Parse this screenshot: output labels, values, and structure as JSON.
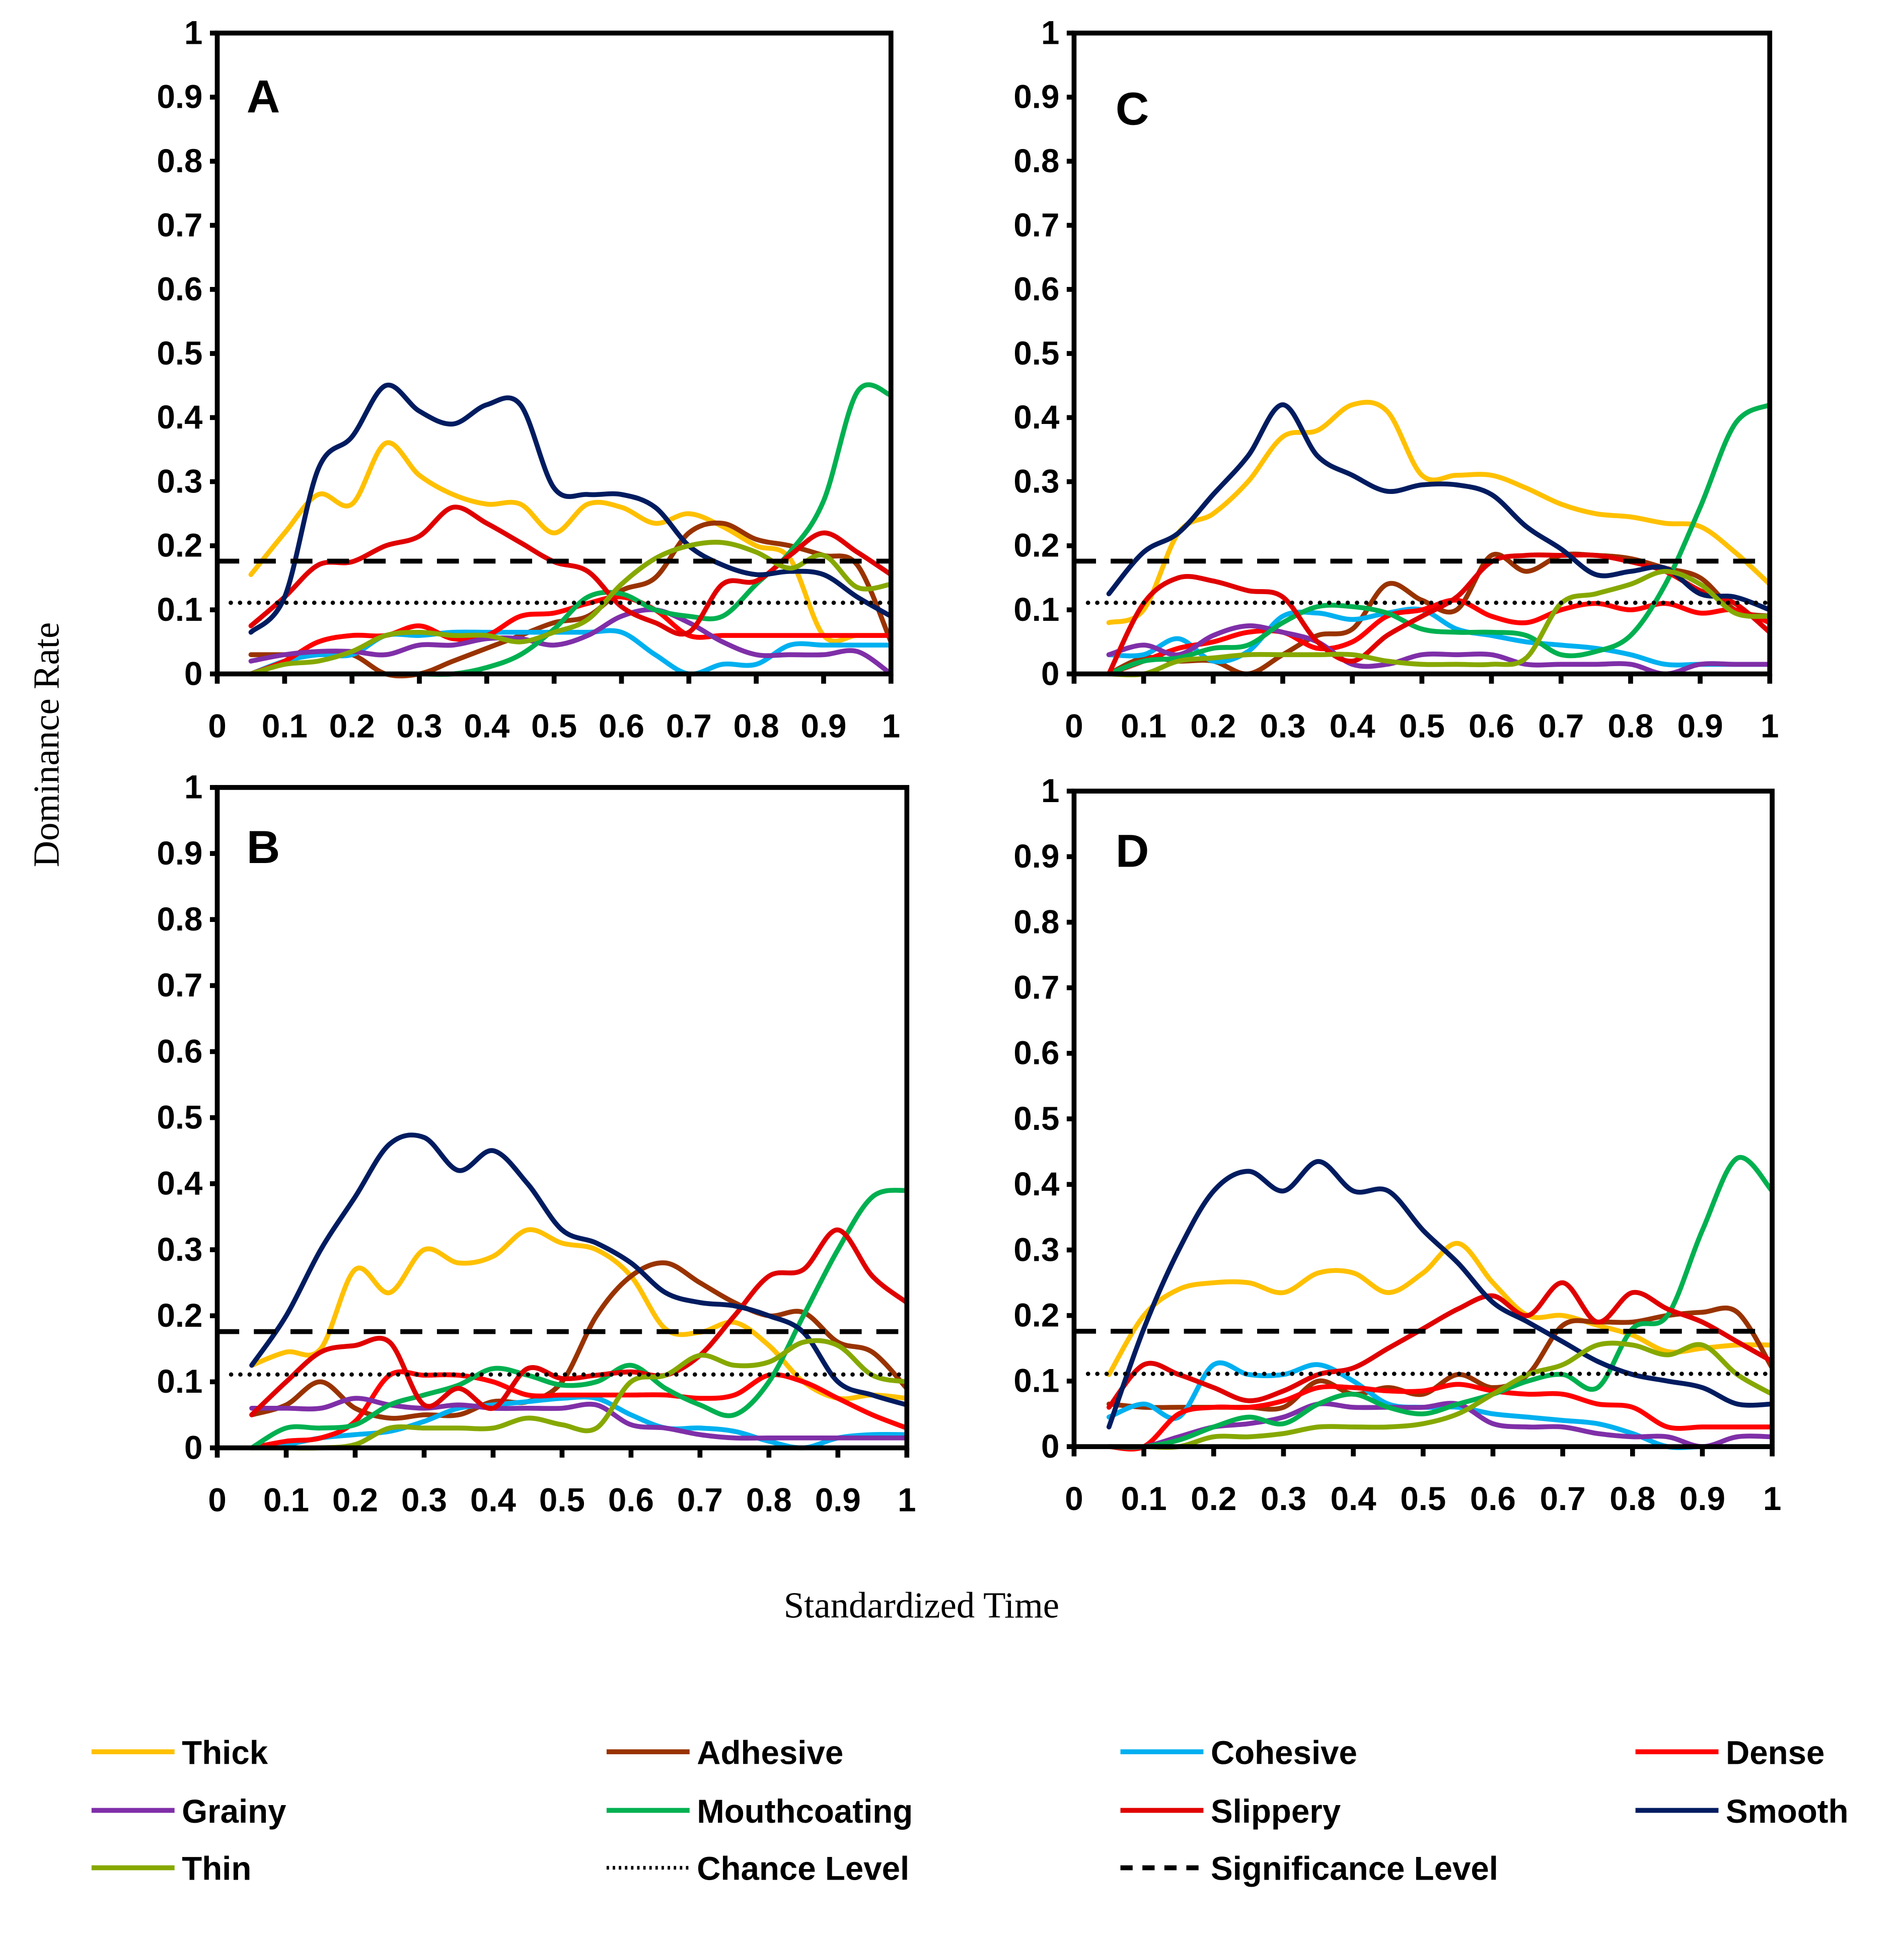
{
  "chart_data": {
    "type": "line",
    "xlabel": "Standardized Time",
    "ylabel": "Dominance Rate",
    "xlim": [
      0,
      1
    ],
    "ylim": [
      0,
      1
    ],
    "x_ticks": [
      "0",
      "0.1",
      "0.2",
      "0.3",
      "0.4",
      "0.5",
      "0.6",
      "0.7",
      "0.8",
      "0.9",
      "1"
    ],
    "y_ticks": [
      "0",
      "0.1",
      "0.2",
      "0.3",
      "0.4",
      "0.5",
      "0.6",
      "0.7",
      "0.8",
      "0.9",
      "1"
    ],
    "grid": false,
    "legend_position": "bottom",
    "chance_level": 0.111,
    "significance_level": 0.176,
    "x": [
      0.05,
      0.1,
      0.15,
      0.2,
      0.25,
      0.3,
      0.35,
      0.4,
      0.45,
      0.5,
      0.55,
      0.6,
      0.65,
      0.7,
      0.75,
      0.8,
      0.85,
      0.9,
      0.95,
      1.0
    ],
    "legend": [
      {
        "name": "Thick",
        "color": "#FFC000",
        "style": "solid"
      },
      {
        "name": "Adhesive",
        "color": "#993300",
        "style": "solid"
      },
      {
        "name": "Cohesive",
        "color": "#00B0F0",
        "style": "solid"
      },
      {
        "name": "Dense",
        "color": "#FF0000",
        "style": "solid"
      },
      {
        "name": "Grainy",
        "color": "#7F2FA8",
        "style": "solid"
      },
      {
        "name": "Mouthcoating",
        "color": "#00B050",
        "style": "solid"
      },
      {
        "name": "Slippery",
        "color": "#E00000",
        "style": "solid"
      },
      {
        "name": "Smooth",
        "color": "#001C60",
        "style": "solid"
      },
      {
        "name": "Thin",
        "color": "#86A800",
        "style": "solid"
      },
      {
        "name": "Chance Level",
        "color": "#000000",
        "style": "dotted"
      },
      {
        "name": "Significance Level",
        "color": "#000000",
        "style": "dashed"
      }
    ],
    "panels": [
      {
        "label": "A",
        "series": {
          "Thick": [
            0.155,
            0.22,
            0.28,
            0.265,
            0.36,
            0.31,
            0.28,
            0.265,
            0.265,
            0.22,
            0.265,
            0.26,
            0.235,
            0.25,
            0.23,
            0.2,
            0.18,
            0.06,
            0.06,
            0.06
          ],
          "Adhesive": [
            0.03,
            0.03,
            0.03,
            0.03,
            0.0,
            0.0,
            0.02,
            0.04,
            0.06,
            0.08,
            0.09,
            0.13,
            0.15,
            0.22,
            0.235,
            0.21,
            0.2,
            0.185,
            0.17,
            0.05
          ],
          "Cohesive": [
            0.0,
            0.02,
            0.03,
            0.03,
            0.06,
            0.06,
            0.065,
            0.065,
            0.065,
            0.065,
            0.065,
            0.065,
            0.03,
            0.0,
            0.015,
            0.015,
            0.045,
            0.045,
            0.045,
            0.045
          ],
          "Dense": [
            0.0,
            0.02,
            0.05,
            0.06,
            0.06,
            0.075,
            0.055,
            0.06,
            0.09,
            0.095,
            0.11,
            0.12,
            0.1,
            0.06,
            0.06,
            0.06,
            0.06,
            0.06,
            0.06,
            0.06
          ],
          "Grainy": [
            0.02,
            0.03,
            0.035,
            0.035,
            0.03,
            0.045,
            0.045,
            0.055,
            0.055,
            0.045,
            0.06,
            0.09,
            0.1,
            0.08,
            0.05,
            0.03,
            0.03,
            0.03,
            0.035,
            0.0
          ],
          "Mouthcoating": [
            0,
            0,
            0,
            0,
            0,
            0,
            0,
            0.01,
            0.03,
            0.07,
            0.12,
            0.125,
            0.1,
            0.09,
            0.09,
            0.14,
            0.19,
            0.27,
            0.44,
            0.435
          ],
          "Slippery": [
            0.075,
            0.12,
            0.17,
            0.175,
            0.2,
            0.215,
            0.26,
            0.235,
            0.205,
            0.175,
            0.16,
            0.105,
            0.08,
            0.065,
            0.14,
            0.145,
            0.185,
            0.22,
            0.19,
            0.155
          ],
          "Smooth": [
            0.065,
            0.12,
            0.32,
            0.37,
            0.45,
            0.41,
            0.39,
            0.42,
            0.42,
            0.29,
            0.28,
            0.28,
            0.26,
            0.2,
            0.17,
            0.155,
            0.16,
            0.155,
            0.12,
            0.09
          ],
          "Thin": [
            0,
            0.015,
            0.02,
            0.035,
            0.06,
            0.065,
            0.06,
            0.06,
            0.05,
            0.065,
            0.085,
            0.14,
            0.18,
            0.2,
            0.205,
            0.19,
            0.165,
            0.185,
            0.135,
            0.14
          ]
        }
      },
      {
        "label": "B",
        "series": {
          "Thick": [
            0.125,
            0.145,
            0.15,
            0.27,
            0.235,
            0.3,
            0.28,
            0.29,
            0.33,
            0.31,
            0.3,
            0.26,
            0.18,
            0.175,
            0.19,
            0.155,
            0.1,
            0.075,
            0.08,
            0.075
          ],
          "Adhesive": [
            0.05,
            0.065,
            0.1,
            0.06,
            0.045,
            0.05,
            0.05,
            0.07,
            0.07,
            0.1,
            0.2,
            0.26,
            0.28,
            0.25,
            0.22,
            0.2,
            0.205,
            0.16,
            0.145,
            0.09
          ],
          "Cohesive": [
            0.0,
            0.005,
            0.015,
            0.02,
            0.025,
            0.04,
            0.06,
            0.065,
            0.07,
            0.075,
            0.075,
            0.05,
            0.03,
            0.03,
            0.025,
            0.01,
            0.0,
            0.015,
            0.02,
            0.02
          ],
          "Dense": [
            0.0,
            0.01,
            0.015,
            0.04,
            0.11,
            0.11,
            0.11,
            0.1,
            0.08,
            0.08,
            0.08,
            0.08,
            0.08,
            0.075,
            0.08,
            0.11,
            0.1,
            0.075,
            0.05,
            0.03
          ],
          "Grainy": [
            0.06,
            0.06,
            0.06,
            0.075,
            0.065,
            0.06,
            0.065,
            0.06,
            0.06,
            0.06,
            0.065,
            0.035,
            0.03,
            0.02,
            0.015,
            0.015,
            0.015,
            0.015,
            0.015,
            0.015
          ],
          "Mouthcoating": [
            0.0,
            0.03,
            0.03,
            0.035,
            0.065,
            0.08,
            0.095,
            0.12,
            0.11,
            0.095,
            0.1,
            0.125,
            0.09,
            0.065,
            0.05,
            0.1,
            0.2,
            0.3,
            0.38,
            0.39
          ],
          "Slippery": [
            0.05,
            0.1,
            0.145,
            0.155,
            0.16,
            0.065,
            0.09,
            0.06,
            0.12,
            0.105,
            0.11,
            0.115,
            0.11,
            0.14,
            0.2,
            0.26,
            0.27,
            0.33,
            0.26,
            0.22
          ],
          "Smooth": [
            0.125,
            0.2,
            0.3,
            0.38,
            0.46,
            0.47,
            0.42,
            0.45,
            0.4,
            0.33,
            0.31,
            0.28,
            0.235,
            0.22,
            0.215,
            0.2,
            0.175,
            0.1,
            0.08,
            0.065
          ],
          "Thin": [
            0.0,
            0.0,
            0.0,
            0.005,
            0.03,
            0.03,
            0.03,
            0.03,
            0.045,
            0.035,
            0.03,
            0.1,
            0.11,
            0.14,
            0.125,
            0.13,
            0.16,
            0.155,
            0.11,
            0.1
          ]
        }
      },
      {
        "label": "C",
        "series": {
          "Thick": [
            0.08,
            0.1,
            0.22,
            0.25,
            0.3,
            0.37,
            0.38,
            0.42,
            0.41,
            0.31,
            0.31,
            0.31,
            0.29,
            0.265,
            0.25,
            0.245,
            0.235,
            0.23,
            0.19,
            0.14
          ],
          "Adhesive": [
            0.0,
            0.025,
            0.02,
            0.02,
            0.0,
            0.03,
            0.06,
            0.07,
            0.14,
            0.115,
            0.1,
            0.185,
            0.16,
            0.185,
            0.185,
            0.18,
            0.165,
            0.15,
            0.1,
            0.09
          ],
          "Cohesive": [
            0.03,
            0.03,
            0.055,
            0.02,
            0.035,
            0.09,
            0.095,
            0.085,
            0.095,
            0.1,
            0.07,
            0.06,
            0.05,
            0.045,
            0.04,
            0.03,
            0.015,
            0.015,
            0.015,
            0.015
          ],
          "Dense": [
            0.0,
            0.02,
            0.04,
            0.05,
            0.065,
            0.065,
            0.04,
            0.05,
            0.09,
            0.1,
            0.115,
            0.09,
            0.08,
            0.1,
            0.11,
            0.1,
            0.11,
            0.095,
            0.1,
            0.08
          ],
          "Grainy": [
            0.03,
            0.045,
            0.03,
            0.06,
            0.075,
            0.065,
            0.05,
            0.015,
            0.015,
            0.03,
            0.03,
            0.03,
            0.015,
            0.015,
            0.015,
            0.015,
            0.0,
            0.015,
            0.015,
            0.015
          ],
          "Mouthcoating": [
            0.0,
            0.02,
            0.025,
            0.04,
            0.045,
            0.08,
            0.105,
            0.105,
            0.095,
            0.07,
            0.065,
            0.065,
            0.06,
            0.03,
            0.035,
            0.06,
            0.14,
            0.26,
            0.39,
            0.42
          ],
          "Slippery": [
            0.0,
            0.11,
            0.15,
            0.145,
            0.13,
            0.12,
            0.05,
            0.02,
            0.06,
            0.09,
            0.12,
            0.175,
            0.185,
            0.185,
            0.185,
            0.175,
            0.16,
            0.13,
            0.11,
            0.065
          ],
          "Smooth": [
            0.125,
            0.19,
            0.22,
            0.28,
            0.34,
            0.42,
            0.34,
            0.31,
            0.285,
            0.295,
            0.295,
            0.28,
            0.23,
            0.195,
            0.155,
            0.16,
            0.165,
            0.125,
            0.12,
            0.1
          ],
          "Thin": [
            0.0,
            0.0,
            0.02,
            0.025,
            0.03,
            0.03,
            0.03,
            0.03,
            0.02,
            0.015,
            0.015,
            0.015,
            0.025,
            0.11,
            0.125,
            0.14,
            0.16,
            0.14,
            0.095,
            0.09
          ]
        }
      },
      {
        "label": "D",
        "series": {
          "Thick": [
            0.11,
            0.2,
            0.24,
            0.25,
            0.25,
            0.235,
            0.265,
            0.265,
            0.235,
            0.265,
            0.31,
            0.25,
            0.2,
            0.2,
            0.185,
            0.17,
            0.145,
            0.15,
            0.155,
            0.155
          ],
          "Adhesive": [
            0.065,
            0.06,
            0.06,
            0.06,
            0.06,
            0.06,
            0.1,
            0.08,
            0.09,
            0.08,
            0.11,
            0.09,
            0.11,
            0.185,
            0.19,
            0.19,
            0.2,
            0.205,
            0.205,
            0.12
          ],
          "Cohesive": [
            0.045,
            0.065,
            0.045,
            0.125,
            0.11,
            0.11,
            0.125,
            0.1,
            0.065,
            0.06,
            0.06,
            0.05,
            0.045,
            0.04,
            0.035,
            0.02,
            0.0,
            0.0,
            0.0,
            0.0
          ],
          "Dense": [
            0.0,
            0.0,
            0.05,
            0.06,
            0.06,
            0.07,
            0.09,
            0.09,
            0.085,
            0.085,
            0.095,
            0.085,
            0.08,
            0.08,
            0.065,
            0.06,
            0.03,
            0.03,
            0.03,
            0.03
          ],
          "Grainy": [
            0.0,
            0.0,
            0.015,
            0.03,
            0.035,
            0.045,
            0.065,
            0.06,
            0.06,
            0.06,
            0.065,
            0.035,
            0.03,
            0.03,
            0.02,
            0.015,
            0.015,
            0.0,
            0.015,
            0.015
          ],
          "Mouthcoating": [
            0.0,
            0.0,
            0.01,
            0.03,
            0.045,
            0.035,
            0.065,
            0.08,
            0.06,
            0.05,
            0.065,
            0.08,
            0.1,
            0.11,
            0.09,
            0.18,
            0.2,
            0.33,
            0.44,
            0.39
          ],
          "Slippery": [
            0.06,
            0.125,
            0.11,
            0.09,
            0.07,
            0.085,
            0.11,
            0.12,
            0.15,
            0.18,
            0.21,
            0.23,
            0.2,
            0.25,
            0.19,
            0.235,
            0.21,
            0.19,
            0.16,
            0.13
          ],
          "Smooth": [
            0.03,
            0.18,
            0.3,
            0.39,
            0.42,
            0.39,
            0.435,
            0.39,
            0.39,
            0.33,
            0.28,
            0.22,
            0.19,
            0.16,
            0.13,
            0.11,
            0.1,
            0.09,
            0.065,
            0.065
          ],
          "Thin": [
            0.0,
            0.0,
            0.0,
            0.015,
            0.015,
            0.02,
            0.03,
            0.03,
            0.03,
            0.035,
            0.05,
            0.08,
            0.11,
            0.125,
            0.155,
            0.155,
            0.14,
            0.155,
            0.11,
            0.08
          ]
        }
      }
    ]
  }
}
